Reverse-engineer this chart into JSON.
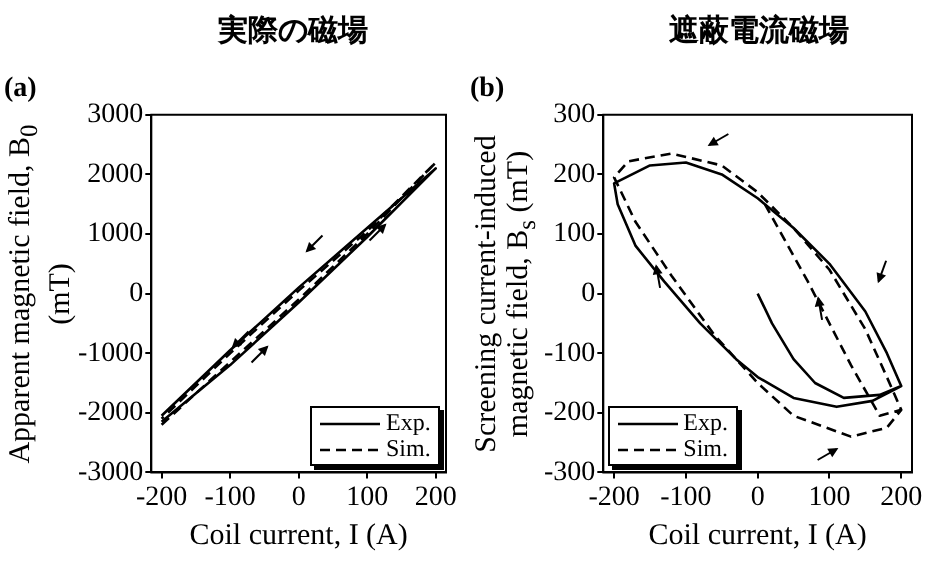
{
  "chart_data": [
    {
      "type": "line",
      "title": "実際の磁場",
      "xlabel": "Coil current, I (A)",
      "ylabel": "Apparent magnetic field, B$_{0}$ (mT)",
      "annotations": [
        "(a)"
      ],
      "xlim": [
        -215,
        215
      ],
      "ylim": [
        -3000,
        3000
      ],
      "xticks": [
        -200,
        -100,
        0,
        100,
        200
      ],
      "yticks": [
        -3000,
        -2000,
        -1000,
        0,
        1000,
        2000,
        3000
      ],
      "legend": "bottom right",
      "series": [
        {
          "name": "Exp.",
          "color": "#000000",
          "line_style": "solid",
          "x": [
            -200,
            -100,
            0,
            100,
            200,
            100,
            0,
            -100,
            -200
          ],
          "values": [
            -2150,
            -1200,
            -150,
            950,
            2100,
            1100,
            100,
            -950,
            -2050
          ]
        },
        {
          "name": "Sim.",
          "color": "#000000",
          "line_style": "dashed",
          "x": [
            -200,
            -100,
            0,
            100,
            200,
            100,
            0,
            -100,
            -200
          ],
          "values": [
            -2200,
            -1150,
            -100,
            1000,
            2200,
            1050,
            50,
            -1000,
            -2100
          ]
        }
      ]
    },
    {
      "type": "line",
      "title": "遮蔽電流磁場",
      "xlabel": "Coil current, I (A)",
      "ylabel": "Screening current-induced magnetic field, B$_{s}$ (mT)",
      "annotations": [
        "(b)"
      ],
      "xlim": [
        -215,
        215
      ],
      "ylim": [
        -300,
        300
      ],
      "xticks": [
        -200,
        -100,
        0,
        100,
        200
      ],
      "yticks": [
        -300,
        -200,
        -100,
        0,
        100,
        200,
        300
      ],
      "legend": "bottom left",
      "series": [
        {
          "name": "Exp.",
          "color": "#000000",
          "line_style": "solid",
          "x": [
            0,
            20,
            50,
            80,
            120,
            170,
            200,
            180,
            150,
            100,
            50,
            0,
            -50,
            -100,
            -150,
            -200,
            -195,
            -170,
            -130,
            -80,
            -30,
            0,
            50,
            110,
            160,
            200
          ],
          "values": [
            0,
            -50,
            -110,
            -150,
            -175,
            -170,
            -155,
            -100,
            -30,
            50,
            110,
            160,
            200,
            220,
            215,
            185,
            150,
            80,
            20,
            -50,
            -110,
            -140,
            -175,
            -190,
            -180,
            -155
          ]
        },
        {
          "name": "Sim.",
          "color": "#000000",
          "line_style": "dashed",
          "x": [
            10,
            70,
            130,
            170,
            200,
            180,
            150,
            100,
            50,
            0,
            -50,
            -120,
            -180,
            -200,
            -170,
            -120,
            -60,
            0,
            50,
            130,
            180,
            200
          ],
          "values": [
            150,
            20,
            -120,
            -205,
            -195,
            -140,
            -60,
            40,
            110,
            170,
            215,
            235,
            222,
            195,
            120,
            30,
            -70,
            -150,
            -205,
            -240,
            -225,
            -195
          ]
        }
      ]
    }
  ]
}
